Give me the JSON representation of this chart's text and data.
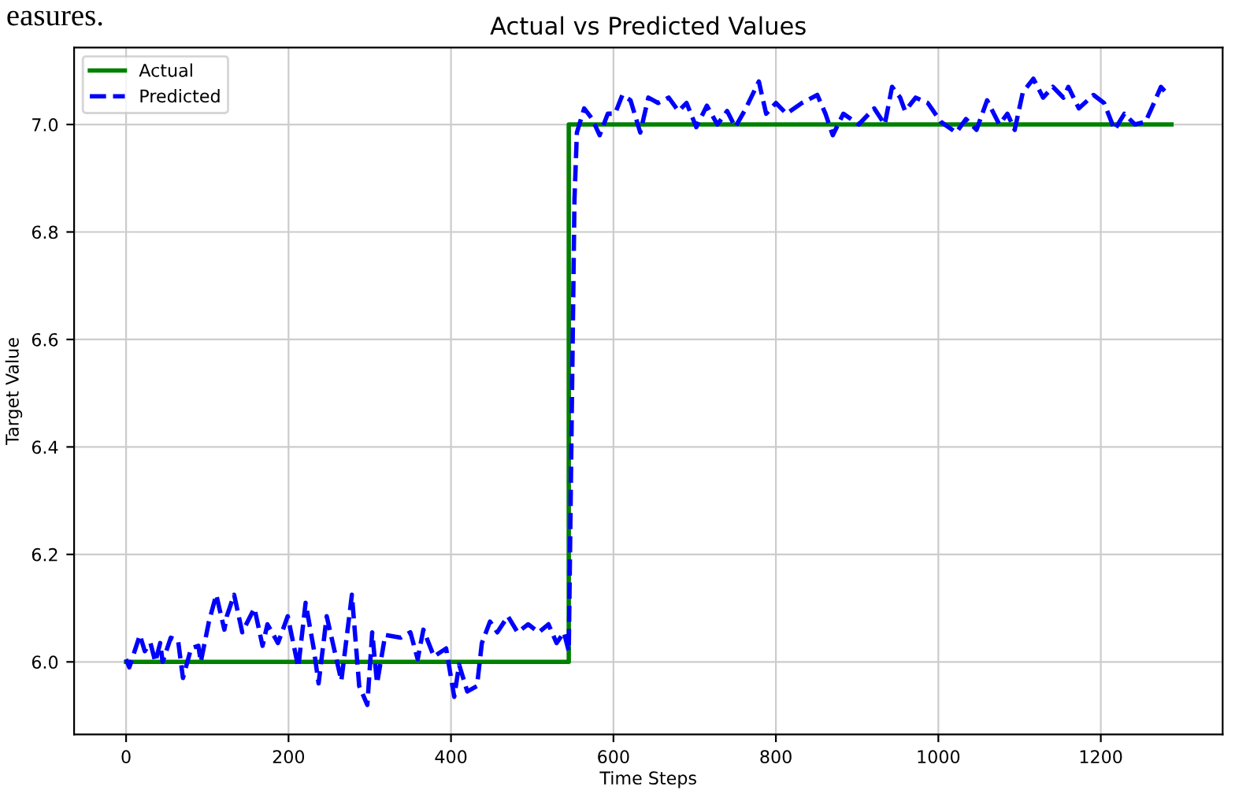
{
  "chart_data": {
    "type": "line",
    "title": "Actual vs Predicted Values",
    "xlabel": "Time Steps",
    "ylabel": "Target Value",
    "annotations": [
      "easures."
    ],
    "series": [
      {
        "name": "Actual",
        "color": "#008000",
        "line_style": "solid",
        "x": [
          0,
          545,
          545,
          1287
        ],
        "values": [
          6.0,
          6.0,
          7.0,
          7.0
        ]
      },
      {
        "name": "Predicted",
        "color": "#0000ff",
        "line_style": "dashed",
        "x": [
          0,
          4,
          17,
          23,
          30,
          36,
          42,
          45,
          55,
          64,
          70,
          80,
          89,
          92,
          102,
          111,
          121,
          124,
          133,
          143,
          158,
          168,
          174,
          187,
          199,
          212,
          221,
          231,
          237,
          247,
          253,
          265,
          278,
          287,
          297,
          303,
          309,
          319,
          338,
          350,
          359,
          366,
          379,
          394,
          404,
          410,
          420,
          432,
          438,
          448,
          457,
          470,
          482,
          495,
          508,
          520,
          530,
          539,
          545,
          552,
          555,
          564,
          574,
          583,
          593,
          602,
          611,
          621,
          633,
          643,
          655,
          668,
          680,
          690,
          702,
          715,
          728,
          740,
          750,
          763,
          779,
          788,
          800,
          813,
          832,
          851,
          861,
          870,
          883,
          902,
          921,
          934,
          943,
          953,
          959,
          972,
          987,
          1003,
          1022,
          1034,
          1047,
          1060,
          1075,
          1085,
          1094,
          1104,
          1117,
          1129,
          1141,
          1154,
          1160,
          1173,
          1191,
          1204,
          1217,
          1229,
          1242,
          1255,
          1264,
          1274,
          1280
        ],
        "values": [
          6.005,
          5.99,
          6.05,
          6.02,
          6.035,
          6.0,
          6.035,
          6.0,
          6.045,
          6.04,
          5.97,
          6.025,
          6.03,
          6.0,
          6.075,
          6.125,
          6.06,
          6.085,
          6.125,
          6.055,
          6.1,
          6.03,
          6.07,
          6.035,
          6.085,
          5.99,
          6.11,
          6.025,
          5.96,
          6.085,
          6.045,
          5.965,
          6.125,
          5.955,
          5.92,
          6.055,
          5.96,
          6.05,
          6.045,
          6.055,
          6.005,
          6.06,
          6.01,
          6.025,
          5.935,
          5.995,
          5.945,
          5.955,
          6.035,
          6.075,
          6.055,
          6.085,
          6.055,
          6.07,
          6.055,
          6.07,
          6.035,
          6.055,
          6.02,
          6.86,
          6.985,
          7.03,
          7.01,
          6.98,
          7.02,
          7.02,
          7.055,
          7.045,
          6.985,
          7.05,
          7.04,
          7.05,
          7.025,
          7.04,
          6.995,
          7.035,
          7.0,
          7.025,
          6.995,
          7.03,
          7.08,
          7.02,
          7.04,
          7.02,
          7.04,
          7.055,
          7.02,
          6.98,
          7.02,
          7.0,
          7.03,
          7.0,
          7.07,
          7.05,
          7.025,
          7.05,
          7.04,
          7.005,
          6.985,
          7.01,
          6.99,
          7.045,
          7.0,
          7.02,
          6.99,
          7.06,
          7.085,
          7.05,
          7.07,
          7.05,
          7.07,
          7.03,
          7.055,
          7.04,
          6.99,
          7.02,
          7.0,
          7.005,
          7.035,
          7.07,
          7.06
        ]
      }
    ],
    "xlim": [
      -64,
      1350
    ],
    "ylim": [
      5.865,
      7.143
    ],
    "xticks": [
      0,
      200,
      400,
      600,
      800,
      1000,
      1200
    ],
    "yticks": [
      {
        "value": 6.0,
        "label": "6.0"
      },
      {
        "value": 6.2,
        "label": "6.2"
      },
      {
        "value": 6.4,
        "label": "6.4"
      },
      {
        "value": 6.6,
        "label": "6.6"
      },
      {
        "value": 6.8,
        "label": "6.8"
      },
      {
        "value": 7.0,
        "label": "7.0"
      }
    ],
    "grid": true,
    "legend": "top left"
  }
}
